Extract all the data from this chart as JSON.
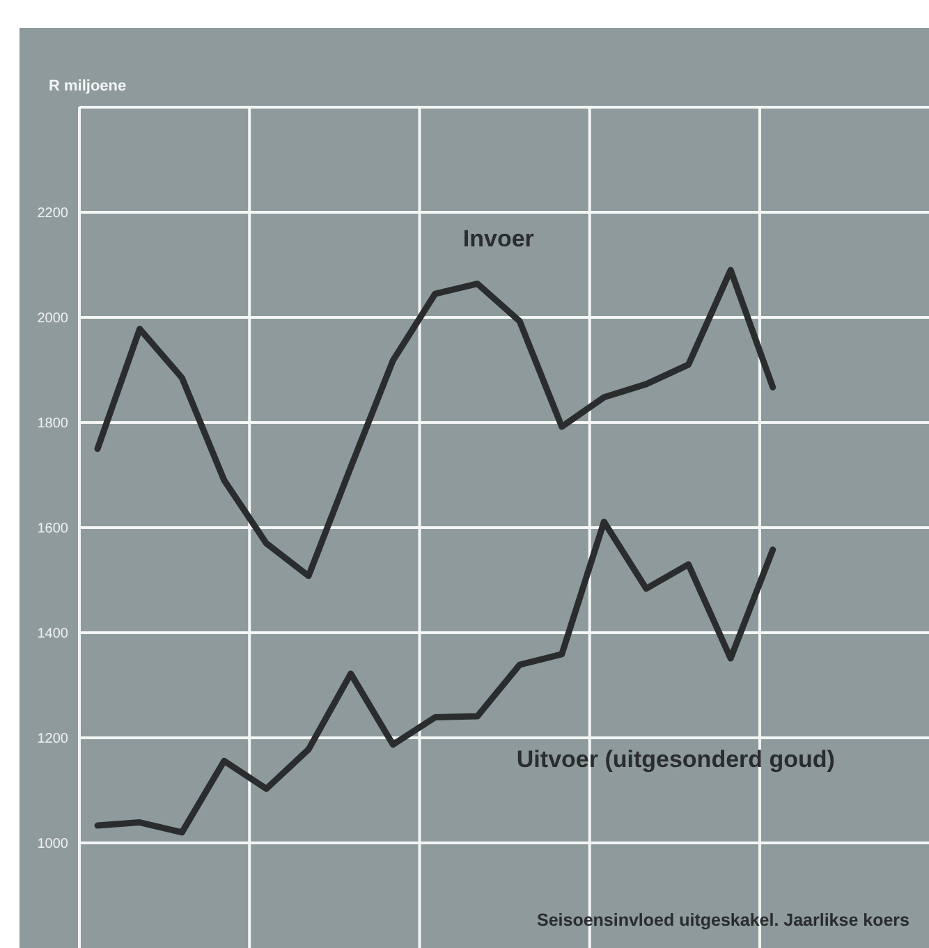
{
  "chart_data": {
    "type": "line",
    "ylabel": "R miljoene",
    "categories": [
      null,
      null,
      null,
      null,
      null,
      null,
      null,
      null,
      null,
      null,
      null,
      null,
      null,
      null,
      null,
      null,
      null
    ],
    "series": [
      {
        "name": "Invoer",
        "color": "#2a2c2e",
        "values": [
          1750,
          1978,
          1885,
          1690,
          1570,
          1508,
          1715,
          1918,
          2045,
          2064,
          1993,
          1792,
          1848,
          1873,
          1910,
          2090,
          1867
        ]
      },
      {
        "name": "Uitvoer (uitgesonderd goud)",
        "color": "#2a2c2e",
        "values": [
          1033,
          1039,
          1020,
          1156,
          1103,
          1178,
          1322,
          1187,
          1239,
          1241,
          1339,
          1359,
          1611,
          1484,
          1530,
          1351,
          1558
        ]
      }
    ],
    "ylim": [
      800,
      2400
    ],
    "yticks": [
      1000,
      1200,
      1400,
      1600,
      1800,
      2000,
      2200,
      {
        "value": 2400,
        "label": null
      }
    ],
    "tick_labels": "y",
    "grid": true,
    "marker": "none",
    "line_style": "solid",
    "annotations": [
      "Seisoensinvloed uitgeskakel. Jaarlikse koers"
    ]
  }
}
